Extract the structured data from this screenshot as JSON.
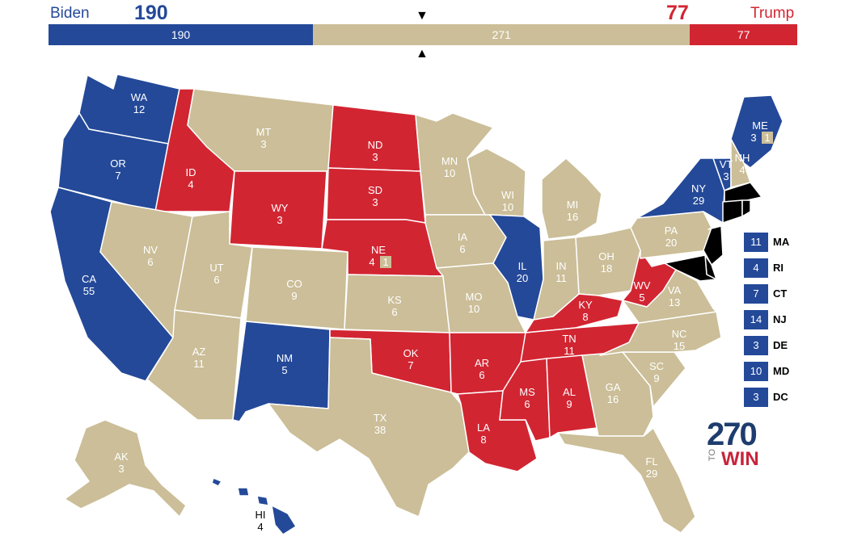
{
  "header": {
    "dem_name": "Biden",
    "dem_total": "190",
    "rep_name": "Trump",
    "rep_total": "77"
  },
  "bar": {
    "dem": {
      "label": "190",
      "value": 190
    },
    "tossup": {
      "label": "271",
      "value": 271
    },
    "rep": {
      "label": "77",
      "value": 77
    },
    "midpoint_marker_down": "▼",
    "midpoint_marker_up": "▲"
  },
  "colors": {
    "dem": "#244999",
    "rep": "#d22532",
    "tossup": "#cbbe98",
    "dem_text": "#244999",
    "rep_text": "#d22532"
  },
  "states": {
    "WA": {
      "abbr": "WA",
      "ev": "12",
      "status": "dem"
    },
    "OR": {
      "abbr": "OR",
      "ev": "7",
      "status": "dem"
    },
    "CA": {
      "abbr": "CA",
      "ev": "55",
      "status": "dem"
    },
    "ID": {
      "abbr": "ID",
      "ev": "4",
      "status": "rep"
    },
    "NV": {
      "abbr": "NV",
      "ev": "6",
      "status": "tossup"
    },
    "MT": {
      "abbr": "MT",
      "ev": "3",
      "status": "tossup"
    },
    "WY": {
      "abbr": "WY",
      "ev": "3",
      "status": "rep"
    },
    "UT": {
      "abbr": "UT",
      "ev": "6",
      "status": "tossup"
    },
    "AZ": {
      "abbr": "AZ",
      "ev": "11",
      "status": "tossup"
    },
    "CO": {
      "abbr": "CO",
      "ev": "9",
      "status": "tossup"
    },
    "NM": {
      "abbr": "NM",
      "ev": "5",
      "status": "dem"
    },
    "ND": {
      "abbr": "ND",
      "ev": "3",
      "status": "rep"
    },
    "SD": {
      "abbr": "SD",
      "ev": "3",
      "status": "rep"
    },
    "NE": {
      "abbr": "NE",
      "ev": "4",
      "ev_extra": "1",
      "status": "rep"
    },
    "KS": {
      "abbr": "KS",
      "ev": "6",
      "status": "tossup"
    },
    "OK": {
      "abbr": "OK",
      "ev": "7",
      "status": "rep"
    },
    "TX": {
      "abbr": "TX",
      "ev": "38",
      "status": "tossup"
    },
    "MN": {
      "abbr": "MN",
      "ev": "10",
      "status": "tossup"
    },
    "IA": {
      "abbr": "IA",
      "ev": "6",
      "status": "tossup"
    },
    "MO": {
      "abbr": "MO",
      "ev": "10",
      "status": "tossup"
    },
    "AR": {
      "abbr": "AR",
      "ev": "6",
      "status": "rep"
    },
    "LA": {
      "abbr": "LA",
      "ev": "8",
      "status": "rep"
    },
    "WI": {
      "abbr": "WI",
      "ev": "10",
      "status": "tossup"
    },
    "IL": {
      "abbr": "IL",
      "ev": "20",
      "status": "dem"
    },
    "MI": {
      "abbr": "MI",
      "ev": "16",
      "status": "tossup"
    },
    "IN": {
      "abbr": "IN",
      "ev": "11",
      "status": "tossup"
    },
    "OH": {
      "abbr": "OH",
      "ev": "18",
      "status": "tossup"
    },
    "KY": {
      "abbr": "KY",
      "ev": "8",
      "status": "rep"
    },
    "TN": {
      "abbr": "TN",
      "ev": "11",
      "status": "rep"
    },
    "MS": {
      "abbr": "MS",
      "ev": "6",
      "status": "rep"
    },
    "AL": {
      "abbr": "AL",
      "ev": "9",
      "status": "rep"
    },
    "GA": {
      "abbr": "GA",
      "ev": "16",
      "status": "tossup"
    },
    "FL": {
      "abbr": "FL",
      "ev": "29",
      "status": "tossup"
    },
    "SC": {
      "abbr": "SC",
      "ev": "9",
      "status": "tossup"
    },
    "NC": {
      "abbr": "NC",
      "ev": "15",
      "status": "tossup"
    },
    "VA": {
      "abbr": "VA",
      "ev": "13",
      "status": "tossup"
    },
    "WV": {
      "abbr": "WV",
      "ev": "5",
      "status": "rep"
    },
    "PA": {
      "abbr": "PA",
      "ev": "20",
      "status": "tossup"
    },
    "NY": {
      "abbr": "NY",
      "ev": "29",
      "status": "dem"
    },
    "VT": {
      "abbr": "VT",
      "ev": "3",
      "status": "dem"
    },
    "NH": {
      "abbr": "NH",
      "ev": "4",
      "status": "tossup"
    },
    "ME": {
      "abbr": "ME",
      "ev": "3",
      "ev_extra": "1",
      "status": "dem"
    },
    "AK": {
      "abbr": "AK",
      "ev": "3",
      "status": "tossup"
    },
    "HI": {
      "abbr": "HI",
      "ev": "4",
      "status": "dem"
    }
  },
  "small_states": [
    {
      "abbr": "MA",
      "ev": "11",
      "status": "dem"
    },
    {
      "abbr": "RI",
      "ev": "4",
      "status": "dem"
    },
    {
      "abbr": "CT",
      "ev": "7",
      "status": "dem"
    },
    {
      "abbr": "NJ",
      "ev": "14",
      "status": "dem"
    },
    {
      "abbr": "DE",
      "ev": "3",
      "status": "dem"
    },
    {
      "abbr": "MD",
      "ev": "10",
      "status": "dem"
    },
    {
      "abbr": "DC",
      "ev": "3",
      "status": "dem"
    }
  ],
  "logo": {
    "number": "270",
    "to": "TO",
    "win": "WIN"
  }
}
